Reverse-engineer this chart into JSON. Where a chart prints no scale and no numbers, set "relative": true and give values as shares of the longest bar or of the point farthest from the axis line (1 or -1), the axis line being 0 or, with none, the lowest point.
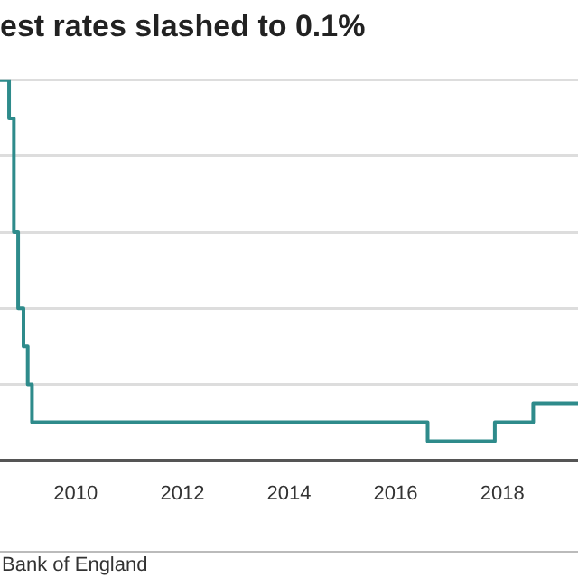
{
  "chart_data": {
    "type": "step",
    "title": "est rates slashed to 0.1%",
    "relative": true,
    "x": [
      2008.58,
      2008.75,
      2008.84,
      2008.92,
      2009.02,
      2009.1,
      2009.18,
      2016.6,
      2017.86,
      2018.58,
      2019.42
    ],
    "series": [
      {
        "color": "#2e8b8b",
        "values": [
          1,
          0.9,
          0.6,
          0.4,
          0.3,
          0.2,
          0.1,
          0.05,
          0.1,
          0.15,
          0.15
        ]
      }
    ],
    "xlim": [
      2008.58,
      2019.42
    ],
    "xticks": [
      2010,
      2012,
      2014,
      2016,
      2018
    ],
    "grid": "y",
    "legend": false,
    "marker": "none",
    "line_style": "solid",
    "annotations": [
      "Bank of England"
    ]
  }
}
